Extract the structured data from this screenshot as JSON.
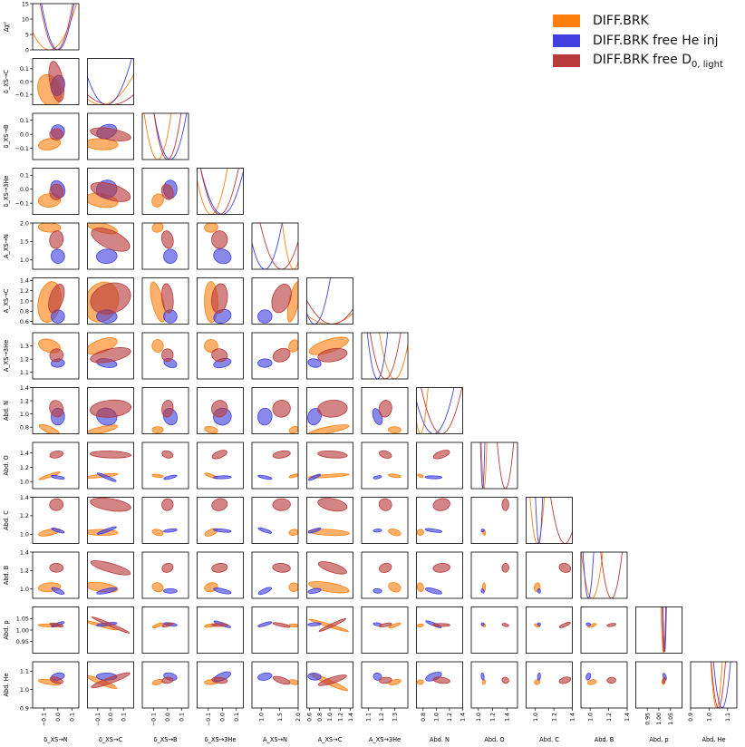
{
  "legend": [
    {
      "label": "DIFF.BRK",
      "color": "#ff7f0e"
    },
    {
      "label": "DIFF.BRK free He inj",
      "color": "#4040e0"
    },
    {
      "label": "DIFF.BRK free D",
      "sub": "0, light",
      "color": "#b83a3a"
    }
  ],
  "chart_data": {
    "type": "corner",
    "xlabels": [
      "δ_XS→N",
      "δ_XS→C",
      "δ_XS→B",
      "δ_XS→3He",
      "A_XS→N",
      "A_XS→C",
      "A_XS→3He",
      "Abd. N",
      "Abd. O",
      "Abd. C",
      "Abd. B",
      "Abd. p",
      "Abd. He"
    ],
    "ylabels": [
      "Δχ²",
      "δ_XS→C",
      "δ_XS→B",
      "δ_XS→3He",
      "A_XS→N",
      "A_XS→C",
      "A_XS→3He",
      "Abd. N",
      "Abd. O",
      "Abd. C",
      "Abd. B",
      "Abd. p",
      "Abd. He"
    ],
    "ranges": [
      [
        -0.18,
        0.15
      ],
      [
        -0.18,
        0.18
      ],
      [
        -0.18,
        0.15
      ],
      [
        -0.18,
        0.15
      ],
      [
        0.75,
        2.0
      ],
      [
        0.55,
        1.45
      ],
      [
        1.05,
        1.4
      ],
      [
        0.7,
        1.4
      ],
      [
        0.9,
        1.55
      ],
      [
        0.9,
        1.4
      ],
      [
        0.9,
        1.4
      ],
      [
        0.9,
        1.1
      ],
      [
        0.9,
        1.15
      ]
    ],
    "ticks": [
      [
        -0.1,
        0.0,
        0.1
      ],
      [
        -0.1,
        0.0,
        0.1
      ],
      [
        -0.1,
        0.0,
        0.1
      ],
      [
        -0.1,
        0.0,
        0.1
      ],
      [
        1.0,
        1.5,
        2.0
      ],
      [
        0.6,
        0.8,
        1.0,
        1.2,
        1.4
      ],
      [
        1.1,
        1.2,
        1.3
      ],
      [
        0.8,
        1.0,
        1.2,
        1.4
      ],
      [
        1.0,
        1.2,
        1.4
      ],
      [
        1.0,
        1.2,
        1.4
      ],
      [
        1.0,
        1.2,
        1.4
      ],
      [
        0.95,
        1.0,
        1.05
      ],
      [
        0.9,
        1.0,
        1.1
      ]
    ],
    "tick_labels": [
      [
        "−0.1",
        "0.0",
        "0.1"
      ],
      [
        "−0.1",
        "0.0",
        "0.1"
      ],
      [
        "−0.1",
        "0.0",
        "0.1"
      ],
      [
        "−0.1",
        "0.0",
        "0.1"
      ],
      [
        "1.0",
        "1.5",
        "2.0"
      ],
      [
        "0.6",
        "0.8",
        "1.0",
        "1.2",
        "1.4"
      ],
      [
        "1.1",
        "1.2",
        "1.3"
      ],
      [
        "0.8",
        "1.0",
        "1.2",
        "1.4"
      ],
      [
        "1.0",
        "1.2",
        "1.4"
      ],
      [
        "1.0",
        "1.2",
        "1.4"
      ],
      [
        "1.0",
        "1.2",
        "1.4"
      ],
      [
        "0.95",
        "1.00",
        "1.05"
      ],
      [
        "0.9",
        "1.0",
        "1.1"
      ]
    ],
    "chi2_range": [
      0,
      15
    ],
    "chi2_ticks": [
      0,
      5,
      10,
      15
    ],
    "series": [
      {
        "name": "DIFF.BRK",
        "color": "#ff7f0e",
        "best": [
          -0.06,
          -0.07,
          -0.07,
          -0.08,
          1.88,
          0.98,
          1.3,
          0.76,
          1.08,
          1.02,
          1.02,
          1.02,
          1.04
        ],
        "sigma": [
          0.05,
          0.08,
          0.025,
          0.03,
          0.08,
          0.25,
          0.03,
          0.03,
          0.01,
          0.02,
          0.03,
          0.003,
          0.008
        ]
      },
      {
        "name": "DIFF.BRK free He inj",
        "color": "#4040e0",
        "best": [
          0.0,
          -0.03,
          0.02,
          0.0,
          1.1,
          0.7,
          1.17,
          0.96,
          1.06,
          1.04,
          0.98,
          1.025,
          1.07
        ],
        "sigma": [
          0.03,
          0.05,
          0.03,
          0.04,
          0.12,
          0.08,
          0.02,
          0.08,
          0.008,
          0.01,
          0.015,
          0.002,
          0.012
        ]
      },
      {
        "name": "DIFF.BRK free D0, light",
        "color": "#b83a3a",
        "best": [
          -0.01,
          0.0,
          0.0,
          -0.02,
          1.55,
          1.05,
          1.23,
          1.08,
          1.38,
          1.32,
          1.23,
          1.022,
          1.05
        ],
        "sigma": [
          0.03,
          0.1,
          0.025,
          0.035,
          0.15,
          0.18,
          0.03,
          0.08,
          0.03,
          0.04,
          0.03,
          0.002,
          0.01
        ]
      }
    ],
    "grid": false,
    "legend_position": "top-right"
  }
}
